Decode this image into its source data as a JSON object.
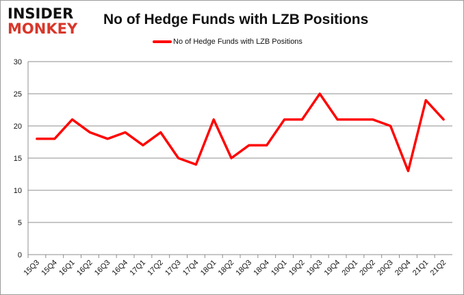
{
  "logo": {
    "line1": "INSIDER",
    "line2": "MONKEY"
  },
  "chart_data": {
    "type": "line",
    "title": "No of Hedge Funds with LZB Positions",
    "categories": [
      "15Q3",
      "15Q4",
      "16Q1",
      "16Q2",
      "16Q3",
      "16Q4",
      "17Q1",
      "17Q2",
      "17Q3",
      "17Q4",
      "18Q1",
      "18Q2",
      "18Q3",
      "18Q4",
      "19Q1",
      "19Q2",
      "19Q3",
      "19Q4",
      "20Q1",
      "20Q2",
      "20Q3",
      "20Q4",
      "21Q1",
      "21Q2"
    ],
    "series": [
      {
        "name": "No of Hedge Funds with LZB Positions",
        "color": "#ff0000",
        "values": [
          18,
          18,
          21,
          19,
          18,
          19,
          17,
          19,
          15,
          14,
          21,
          15,
          17,
          17,
          21,
          21,
          25,
          21,
          21,
          21,
          20,
          13,
          24,
          21
        ]
      }
    ],
    "ylim": [
      0,
      30
    ],
    "yticks": [
      0,
      5,
      10,
      15,
      20,
      25,
      30
    ],
    "grid": true,
    "legend": "top",
    "xlabel": "",
    "ylabel": ""
  }
}
